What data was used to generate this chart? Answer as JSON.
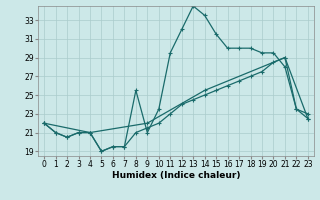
{
  "title": "",
  "xlabel": "Humidex (Indice chaleur)",
  "ylabel": "",
  "bg_color": "#cce8e8",
  "line_color": "#1a6b6b",
  "grid_color": "#aacccc",
  "xlim": [
    -0.5,
    23.5
  ],
  "ylim": [
    18.5,
    34.5
  ],
  "yticks": [
    19,
    21,
    23,
    25,
    27,
    29,
    31,
    33
  ],
  "xticks": [
    0,
    1,
    2,
    3,
    4,
    5,
    6,
    7,
    8,
    9,
    10,
    11,
    12,
    13,
    14,
    15,
    16,
    17,
    18,
    19,
    20,
    21,
    22,
    23
  ],
  "line1_x": [
    0,
    1,
    2,
    3,
    4,
    5,
    6,
    7,
    8,
    9,
    10,
    11,
    12,
    13,
    14,
    15,
    16,
    17,
    18,
    19,
    20,
    21,
    22,
    23
  ],
  "line1_y": [
    22.0,
    21.0,
    20.5,
    21.0,
    21.0,
    19.0,
    19.5,
    19.5,
    25.5,
    21.0,
    23.5,
    29.5,
    32.0,
    34.5,
    33.5,
    31.5,
    30.0,
    30.0,
    30.0,
    29.5,
    29.5,
    28.0,
    23.5,
    23.0
  ],
  "line2_x": [
    0,
    1,
    2,
    3,
    4,
    5,
    6,
    7,
    8,
    9,
    10,
    11,
    12,
    13,
    14,
    15,
    16,
    17,
    18,
    19,
    20,
    21,
    22,
    23
  ],
  "line2_y": [
    22.0,
    21.0,
    20.5,
    21.0,
    21.0,
    19.0,
    19.5,
    19.5,
    21.0,
    21.5,
    22.0,
    23.0,
    24.0,
    24.5,
    25.0,
    25.5,
    26.0,
    26.5,
    27.0,
    27.5,
    28.5,
    29.0,
    23.5,
    22.5
  ],
  "line3_x": [
    0,
    4,
    9,
    14,
    21,
    23
  ],
  "line3_y": [
    22.0,
    21.0,
    22.0,
    25.5,
    29.0,
    22.5
  ],
  "markersize": 3.5,
  "linewidth": 0.9
}
